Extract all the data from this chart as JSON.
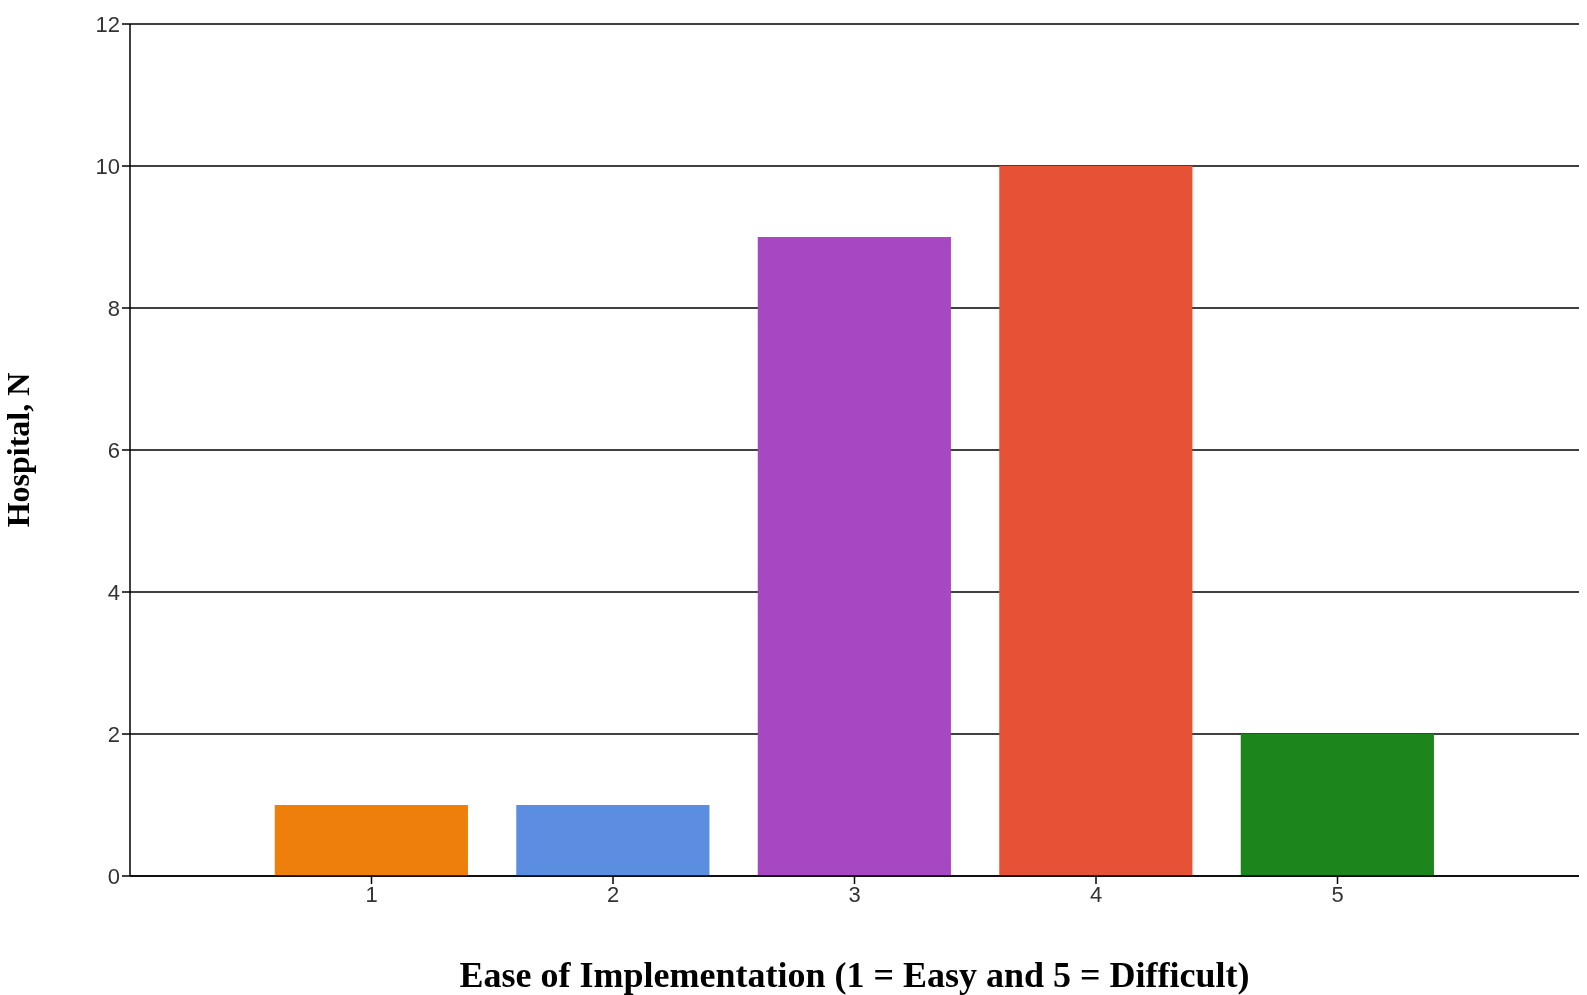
{
  "chart_data": {
    "type": "bar",
    "xlabel": "Ease of Implementation (1 = Easy and 5 = Difficult)",
    "ylabel": "Hospital, N",
    "x": [
      1,
      2,
      3,
      4,
      5
    ],
    "values": [
      1,
      1,
      9,
      10,
      2
    ],
    "colors": [
      "#ee7f0a",
      "#5b8ee0",
      "#a847c2",
      "#e65236",
      "#1c851c"
    ],
    "xlim": [
      0,
      6
    ],
    "xticks": [
      1,
      2,
      3,
      4,
      5
    ],
    "ylim": [
      0,
      12
    ],
    "yticks": [
      0,
      2,
      4,
      6,
      8,
      10,
      12
    ],
    "grid": "y"
  }
}
